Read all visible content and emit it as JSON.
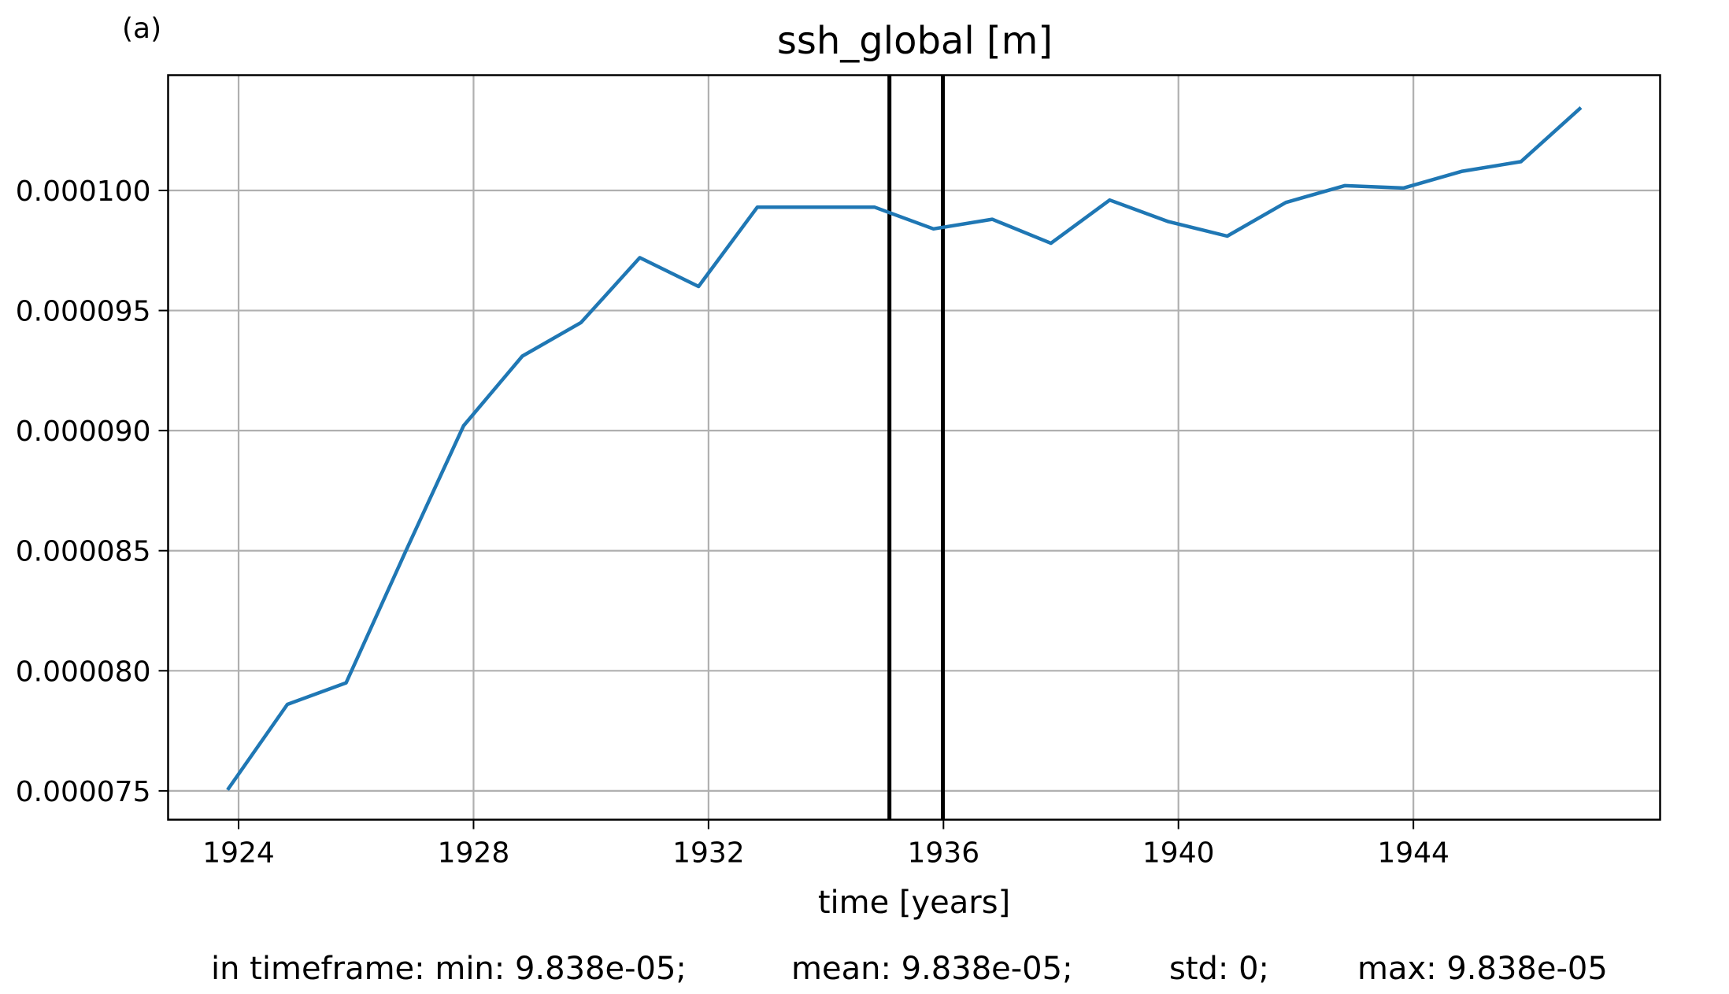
{
  "panel_label": "(a)",
  "stats": {
    "min": "in timeframe: min: 9.838e-05;",
    "mean": "mean: 9.838e-05;",
    "std": "std: 0;",
    "max": "max: 9.838e-05"
  },
  "chart_data": {
    "type": "line",
    "title": "ssh_global [m]",
    "xlabel": "time [years]",
    "ylabel": "",
    "xlim": [
      1922.8,
      1948.2
    ],
    "ylim": [
      7.38e-05,
      0.0001048
    ],
    "xticks": [
      1924,
      1928,
      1932,
      1936,
      1940,
      1944
    ],
    "xtick_labels": [
      "1924",
      "1928",
      "1932",
      "1936",
      "1940",
      "1944"
    ],
    "yticks": [
      7.5e-05,
      8e-05,
      8.5e-05,
      9e-05,
      9.5e-05,
      0.0001
    ],
    "ytick_labels": [
      "0.000075",
      "0.000080",
      "0.000085",
      "0.000090",
      "0.000095",
      "0.000100"
    ],
    "grid": true,
    "color": "#1f77b4",
    "series": [
      {
        "x": [
          1923.83,
          1924.83,
          1925.83,
          1926.83,
          1927.83,
          1928.83,
          1929.83,
          1930.83,
          1931.83,
          1932.83,
          1933.83,
          1934.83,
          1935.83,
          1936.83,
          1937.83,
          1938.83,
          1939.83,
          1940.83,
          1941.83,
          1942.83,
          1943.83,
          1944.83,
          1945.83,
          1946.83
        ],
        "y": [
          7.51e-05,
          7.86e-05,
          7.95e-05,
          8.49e-05,
          9.02e-05,
          9.31e-05,
          9.45e-05,
          9.72e-05,
          9.6e-05,
          9.93e-05,
          9.93e-05,
          9.93e-05,
          9.84e-05,
          9.88e-05,
          9.78e-05,
          9.96e-05,
          9.87e-05,
          9.81e-05,
          9.95e-05,
          0.0001002,
          0.0001001,
          0.0001008,
          0.0001012,
          0.0001034
        ]
      }
    ],
    "vlines": [
      1935.08,
      1935.99
    ]
  }
}
